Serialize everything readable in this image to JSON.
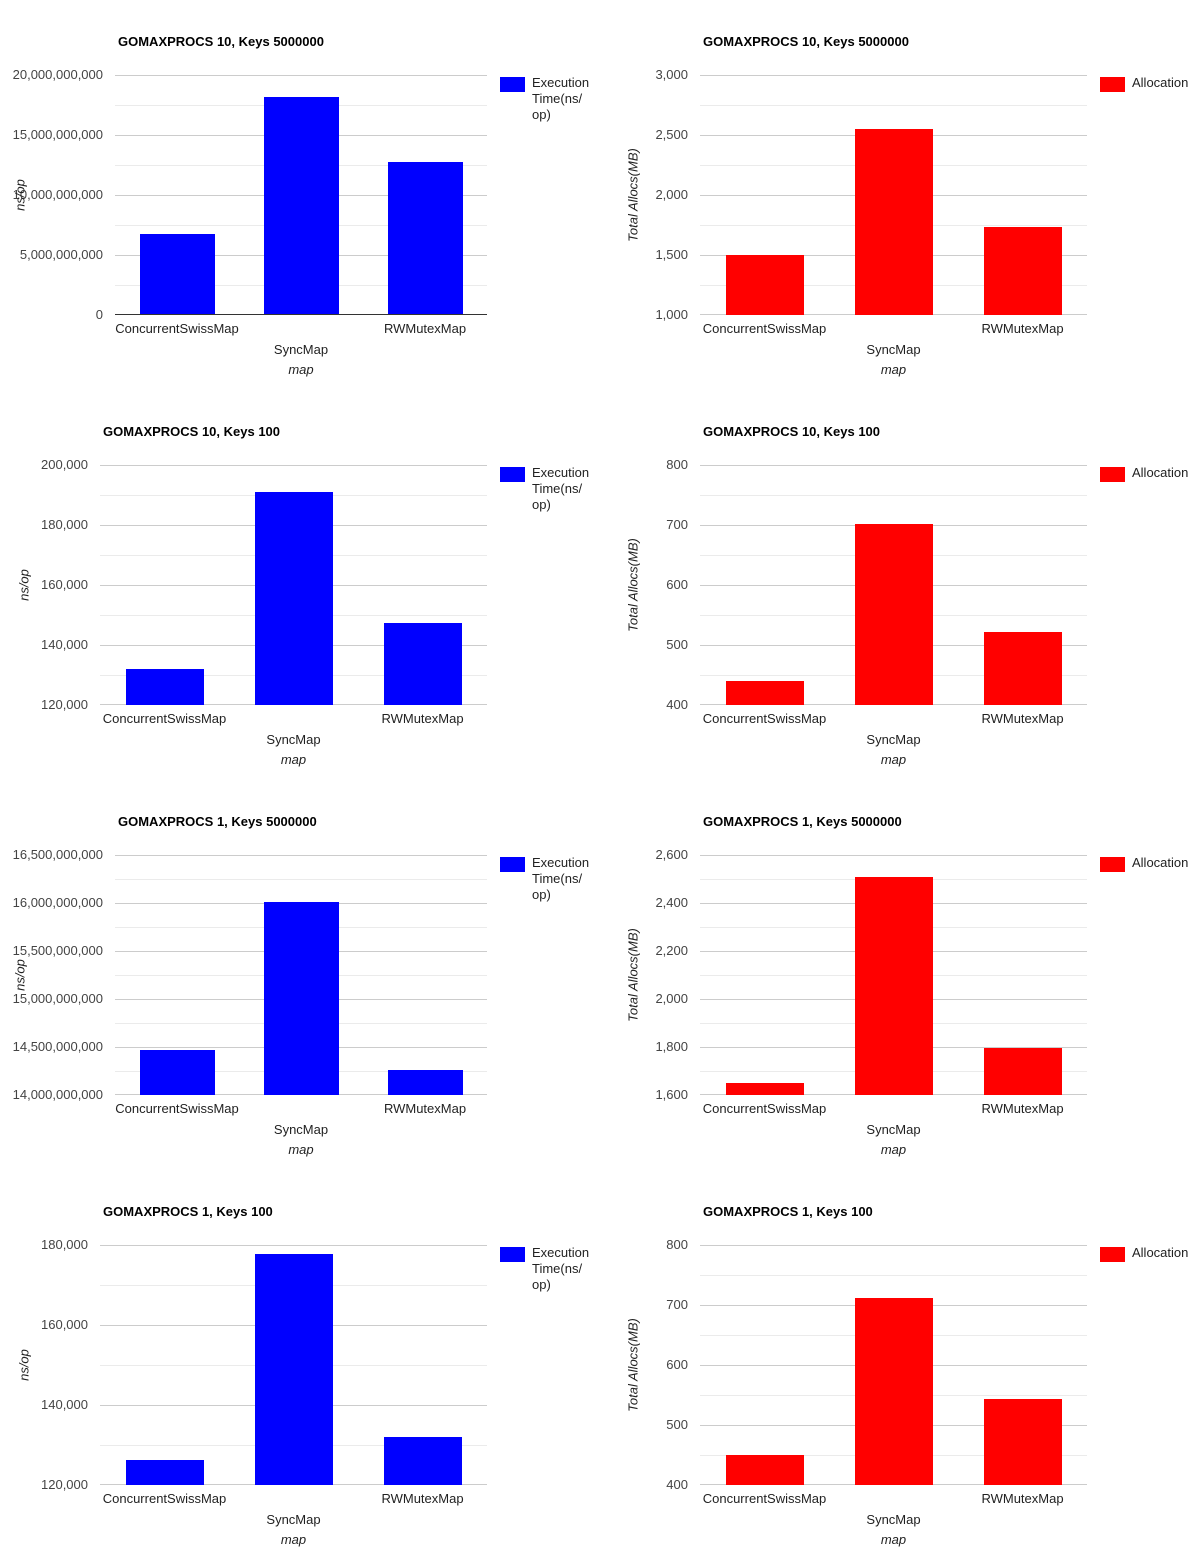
{
  "colors": {
    "execution_series": "#0000ff",
    "allocation_series": "#ff0000",
    "grid_major": "#cccccc",
    "grid_minor": "#ebebeb",
    "zero_baseline": "#333333",
    "tick_text": "#444444",
    "category_text": "#222222",
    "title_text": "#000000",
    "background": "#ffffff"
  },
  "chart_data": [
    {
      "type": "bar",
      "title": "GOMAXPROCS 10, Keys 5000000",
      "xlabel": "map",
      "ylabel": "ns/op",
      "categories": [
        "ConcurrentSwissMap",
        "SyncMap",
        "RWMutexMap"
      ],
      "series": [
        {
          "name": "Execution Time(ns/op)",
          "color": "#0000ff",
          "values": [
            6750000000,
            18170000000,
            12770000000
          ]
        }
      ],
      "ylim": [
        0,
        20000000000
      ],
      "ytick_step": 5000000000,
      "ytick_labels": [
        "0",
        "5,000,000,000",
        "10,000,000,000",
        "15,000,000,000",
        "20,000,000,000"
      ],
      "legend_position": "right",
      "legend_lines": [
        "Execution",
        "Time(ns/",
        "op)"
      ],
      "grid": true,
      "zero_baseline": true
    },
    {
      "type": "bar",
      "title": "GOMAXPROCS 10, Keys 5000000",
      "xlabel": "map",
      "ylabel": "Total Allocs(MB)",
      "categories": [
        "ConcurrentSwissMap",
        "SyncMap",
        "RWMutexMap"
      ],
      "series": [
        {
          "name": "Allocation",
          "color": "#ff0000",
          "values": [
            1503,
            2554,
            1733
          ]
        }
      ],
      "ylim": [
        1000,
        3000
      ],
      "ytick_step": 500,
      "ytick_labels": [
        "1,000",
        "1,500",
        "2,000",
        "2,500",
        "3,000"
      ],
      "legend_position": "right",
      "legend_lines": [
        "Allocation"
      ],
      "grid": true,
      "zero_baseline": false
    },
    {
      "type": "bar",
      "title": "GOMAXPROCS 10, Keys 100",
      "xlabel": "map",
      "ylabel": "ns/op",
      "categories": [
        "ConcurrentSwissMap",
        "SyncMap",
        "RWMutexMap"
      ],
      "series": [
        {
          "name": "Execution Time(ns/op)",
          "color": "#0000ff",
          "values": [
            132000,
            191000,
            147200
          ]
        }
      ],
      "ylim": [
        120000,
        200000
      ],
      "ytick_step": 20000,
      "ytick_labels": [
        "120,000",
        "140,000",
        "160,000",
        "180,000",
        "200,000"
      ],
      "legend_position": "right",
      "legend_lines": [
        "Execution",
        "Time(ns/",
        "op)"
      ],
      "grid": true,
      "zero_baseline": false
    },
    {
      "type": "bar",
      "title": "GOMAXPROCS 10, Keys 100",
      "xlabel": "map",
      "ylabel": "Total Allocs(MB)",
      "categories": [
        "ConcurrentSwissMap",
        "SyncMap",
        "RWMutexMap"
      ],
      "series": [
        {
          "name": "Allocation",
          "color": "#ff0000",
          "values": [
            440,
            701,
            522
          ]
        }
      ],
      "ylim": [
        400,
        800
      ],
      "ytick_step": 100,
      "ytick_labels": [
        "400",
        "500",
        "600",
        "700",
        "800"
      ],
      "legend_position": "right",
      "legend_lines": [
        "Allocation"
      ],
      "grid": true,
      "zero_baseline": false
    },
    {
      "type": "bar",
      "title": "GOMAXPROCS 1, Keys 5000000",
      "xlabel": "map",
      "ylabel": "ns/op",
      "categories": [
        "ConcurrentSwissMap",
        "SyncMap",
        "RWMutexMap"
      ],
      "series": [
        {
          "name": "Execution Time(ns/op)",
          "color": "#0000ff",
          "values": [
            14470000000,
            16010000000,
            14260000000
          ]
        }
      ],
      "ylim": [
        14000000000,
        16500000000
      ],
      "ytick_step": 500000000,
      "ytick_labels": [
        "14,000,000,000",
        "14,500,000,000",
        "15,000,000,000",
        "15,500,000,000",
        "16,000,000,000",
        "16,500,000,000"
      ],
      "legend_position": "right",
      "legend_lines": [
        "Execution",
        "Time(ns/",
        "op)"
      ],
      "grid": true,
      "zero_baseline": false
    },
    {
      "type": "bar",
      "title": "GOMAXPROCS 1, Keys 5000000",
      "xlabel": "map",
      "ylabel": "Total Allocs(MB)",
      "categories": [
        "ConcurrentSwissMap",
        "SyncMap",
        "RWMutexMap"
      ],
      "series": [
        {
          "name": "Allocation",
          "color": "#ff0000",
          "values": [
            1650,
            2508,
            1795
          ]
        }
      ],
      "ylim": [
        1600,
        2600
      ],
      "ytick_step": 200,
      "ytick_labels": [
        "1,600",
        "1,800",
        "2,000",
        "2,200",
        "2,400",
        "2,600"
      ],
      "legend_position": "right",
      "legend_lines": [
        "Allocation"
      ],
      "grid": true,
      "zero_baseline": false
    },
    {
      "type": "bar",
      "title": "GOMAXPROCS 1, Keys 100",
      "xlabel": "map",
      "ylabel": "ns/op",
      "categories": [
        "ConcurrentSwissMap",
        "SyncMap",
        "RWMutexMap"
      ],
      "series": [
        {
          "name": "Execution Time(ns/op)",
          "color": "#0000ff",
          "values": [
            126200,
            177800,
            131900
          ]
        }
      ],
      "ylim": [
        120000,
        180000
      ],
      "ytick_step": 20000,
      "ytick_labels": [
        "120,000",
        "140,000",
        "160,000",
        "180,000"
      ],
      "legend_position": "right",
      "legend_lines": [
        "Execution",
        "Time(ns/",
        "op)"
      ],
      "grid": true,
      "zero_baseline": false
    },
    {
      "type": "bar",
      "title": "GOMAXPROCS 1, Keys 100",
      "xlabel": "map",
      "ylabel": "Total Allocs(MB)",
      "categories": [
        "ConcurrentSwissMap",
        "SyncMap",
        "RWMutexMap"
      ],
      "series": [
        {
          "name": "Allocation",
          "color": "#ff0000",
          "values": [
            450,
            712,
            543
          ]
        }
      ],
      "ylim": [
        400,
        800
      ],
      "ytick_step": 100,
      "ytick_labels": [
        "400",
        "500",
        "600",
        "700",
        "800"
      ],
      "legend_position": "right",
      "legend_lines": [
        "Allocation"
      ],
      "grid": true,
      "zero_baseline": false
    }
  ]
}
